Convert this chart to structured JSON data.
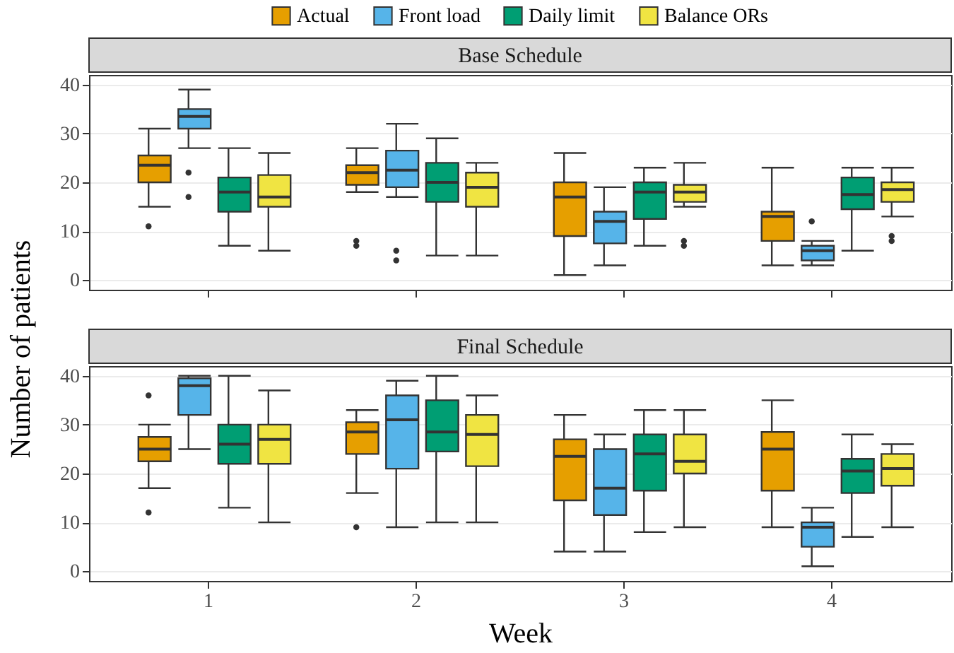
{
  "chart_data": [
    {
      "type": "box",
      "title": "Base Schedule",
      "ylabel": "Number of patients",
      "categories": [
        "1",
        "2",
        "3",
        "4"
      ],
      "ylim": [
        -2,
        42
      ],
      "yticks": [
        0,
        10,
        20,
        30,
        40
      ],
      "grid": "y",
      "legend": "top",
      "tick_labels": "y",
      "series": [
        {
          "name": "Actual",
          "color": "#e69f00",
          "boxes": [
            {
              "low": 15,
              "q1": 20,
              "median": 23.5,
              "q3": 25.5,
              "high": 31,
              "outliers": [
                11
              ]
            },
            {
              "low": 18,
              "q1": 19.5,
              "median": 22,
              "q3": 23.5,
              "high": 27,
              "outliers": [
                8,
                7
              ]
            },
            {
              "low": 1,
              "q1": 9,
              "median": 17,
              "q3": 20,
              "high": 26
            },
            {
              "low": 3,
              "q1": 8,
              "median": 13,
              "q3": 14,
              "high": 23
            }
          ]
        },
        {
          "name": "Front load",
          "color": "#56b4e9",
          "boxes": [
            {
              "low": 27,
              "q1": 31,
              "median": 33.5,
              "q3": 35,
              "high": 39,
              "outliers": [
                22,
                17
              ]
            },
            {
              "low": 17,
              "q1": 19,
              "median": 22.5,
              "q3": 26.5,
              "high": 32,
              "outliers": [
                6,
                4
              ]
            },
            {
              "low": 3,
              "q1": 7.5,
              "median": 12,
              "q3": 14,
              "high": 19
            },
            {
              "low": 3,
              "q1": 4,
              "median": 6,
              "q3": 7,
              "high": 8,
              "outliers": [
                12
              ]
            }
          ]
        },
        {
          "name": "Daily limit",
          "color": "#009e73",
          "boxes": [
            {
              "low": 7,
              "q1": 14,
              "median": 18,
              "q3": 21,
              "high": 27
            },
            {
              "low": 5,
              "q1": 16,
              "median": 20,
              "q3": 24,
              "high": 29
            },
            {
              "low": 7,
              "q1": 12.5,
              "median": 18,
              "q3": 20,
              "high": 23
            },
            {
              "low": 6,
              "q1": 14.5,
              "median": 17.5,
              "q3": 21,
              "high": 23
            }
          ]
        },
        {
          "name": "Balance ORs",
          "color": "#f0e442",
          "boxes": [
            {
              "low": 6,
              "q1": 15,
              "median": 17,
              "q3": 21.5,
              "high": 26
            },
            {
              "low": 5,
              "q1": 15,
              "median": 19,
              "q3": 22,
              "high": 24
            },
            {
              "low": 15,
              "q1": 16,
              "median": 18,
              "q3": 19.5,
              "high": 24,
              "outliers": [
                8,
                7
              ]
            },
            {
              "low": 13,
              "q1": 16,
              "median": 18.5,
              "q3": 20,
              "high": 23,
              "outliers": [
                9,
                8
              ]
            }
          ]
        }
      ]
    },
    {
      "type": "box",
      "title": "Final Schedule",
      "xlabel": "Week",
      "categories": [
        "1",
        "2",
        "3",
        "4"
      ],
      "ylim": [
        -2,
        42
      ],
      "yticks": [
        0,
        10,
        20,
        30,
        40
      ],
      "grid": "y",
      "series": [
        {
          "name": "Actual",
          "color": "#e69f00",
          "boxes": [
            {
              "low": 17,
              "q1": 22.5,
              "median": 25,
              "q3": 27.5,
              "high": 30,
              "outliers": [
                36,
                12
              ]
            },
            {
              "low": 16,
              "q1": 24,
              "median": 28.5,
              "q3": 30.5,
              "high": 33,
              "outliers": [
                9
              ]
            },
            {
              "low": 4,
              "q1": 14.5,
              "median": 23.5,
              "q3": 27,
              "high": 32
            },
            {
              "low": 9,
              "q1": 16.5,
              "median": 25,
              "q3": 28.5,
              "high": 35
            }
          ]
        },
        {
          "name": "Front load",
          "color": "#56b4e9",
          "boxes": [
            {
              "low": 25,
              "q1": 32,
              "median": 38,
              "q3": 39.5,
              "high": 40
            },
            {
              "low": 9,
              "q1": 21,
              "median": 31,
              "q3": 36,
              "high": 39
            },
            {
              "low": 4,
              "q1": 11.5,
              "median": 17,
              "q3": 25,
              "high": 28
            },
            {
              "low": 1,
              "q1": 5,
              "median": 9,
              "q3": 10,
              "high": 13
            }
          ]
        },
        {
          "name": "Daily limit",
          "color": "#009e73",
          "boxes": [
            {
              "low": 13,
              "q1": 22,
              "median": 26,
              "q3": 30,
              "high": 40
            },
            {
              "low": 10,
              "q1": 24.5,
              "median": 28.5,
              "q3": 35,
              "high": 40
            },
            {
              "low": 8,
              "q1": 16.5,
              "median": 24,
              "q3": 28,
              "high": 33
            },
            {
              "low": 7,
              "q1": 16,
              "median": 20.5,
              "q3": 23,
              "high": 28
            }
          ]
        },
        {
          "name": "Balance ORs",
          "color": "#f0e442",
          "boxes": [
            {
              "low": 10,
              "q1": 22,
              "median": 27,
              "q3": 30,
              "high": 37
            },
            {
              "low": 10,
              "q1": 21.5,
              "median": 28,
              "q3": 32,
              "high": 36
            },
            {
              "low": 9,
              "q1": 20,
              "median": 22.5,
              "q3": 28,
              "high": 33
            },
            {
              "low": 9,
              "q1": 17.5,
              "median": 21,
              "q3": 24,
              "high": 26
            }
          ]
        }
      ]
    }
  ]
}
